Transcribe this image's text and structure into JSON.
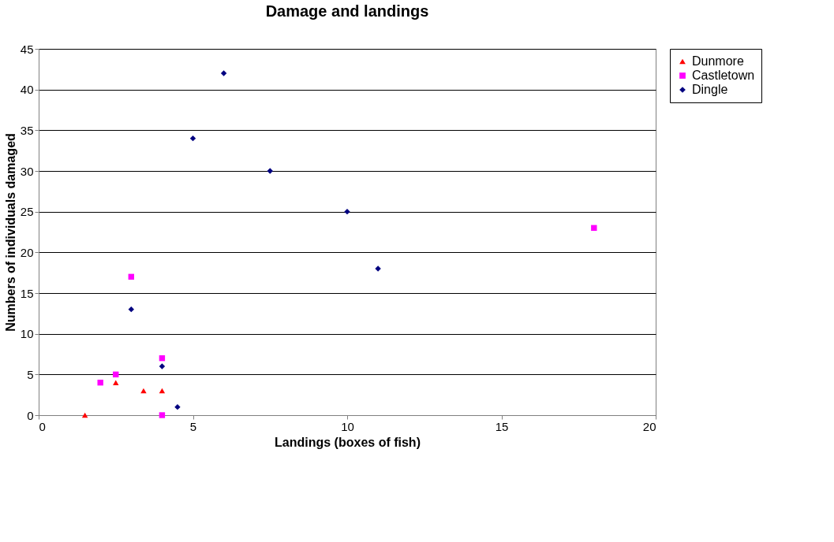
{
  "chart_data": {
    "type": "scatter",
    "title": "Damage and landings",
    "xlabel": "Landings (boxes of fish)",
    "ylabel": "Numbers of individuals damaged",
    "xlim": [
      0,
      20
    ],
    "xticks": [
      0,
      5,
      10,
      15,
      20
    ],
    "ylim": [
      0,
      45
    ],
    "yticks": [
      0,
      5,
      10,
      15,
      20,
      25,
      30,
      35,
      40,
      45
    ],
    "grid": "y",
    "legend": "right",
    "series": [
      {
        "name": "Dunmore",
        "color": "#ff0000",
        "marker": "triangle",
        "x": [
          1.5,
          2.5,
          3.4,
          4
        ],
        "values": [
          0,
          4,
          3,
          3
        ]
      },
      {
        "name": "Castletown",
        "color": "#ff00ff",
        "marker": "square",
        "x": [
          2,
          2.5,
          3,
          4,
          4,
          18
        ],
        "values": [
          4,
          5,
          17,
          7,
          0,
          23
        ]
      },
      {
        "name": "Dingle",
        "color": "#000080",
        "marker": "diamond",
        "x": [
          3,
          4,
          4.5,
          5,
          6,
          7.5,
          10,
          11
        ],
        "values": [
          13,
          6,
          1,
          34,
          42,
          30,
          25,
          18
        ]
      }
    ]
  }
}
